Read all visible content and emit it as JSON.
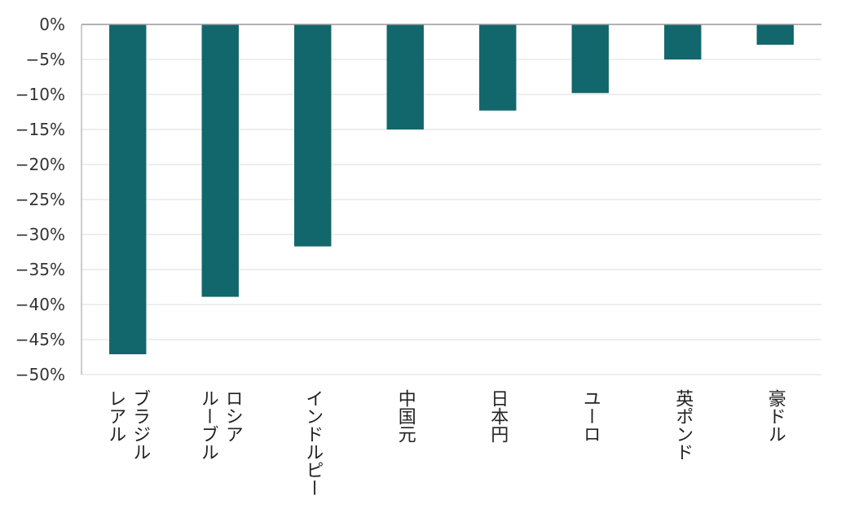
{
  "chart_data": {
    "type": "bar",
    "title": "",
    "xlabel": "",
    "ylabel": "",
    "categories": [
      [
        "ブラジル",
        "レアル"
      ],
      [
        "ロシア",
        "ルーブル"
      ],
      [
        "インドルピー"
      ],
      [
        "中国元"
      ],
      [
        "日本円"
      ],
      [
        "ユーロ"
      ],
      [
        "英ポンド"
      ],
      [
        "豪ドル"
      ]
    ],
    "values": [
      -47.1,
      -38.9,
      -31.7,
      -15.0,
      -12.3,
      -9.8,
      -5.0,
      -2.9
    ],
    "ylim": [
      -50,
      0
    ],
    "yticks": [
      0,
      -5,
      -10,
      -15,
      -20,
      -25,
      -30,
      -35,
      -40,
      -45,
      -50
    ],
    "ytick_labels": [
      "0%",
      "−5%",
      "−10%",
      "−15%",
      "−20%",
      "−25%",
      "−30%",
      "−35%",
      "−40%",
      "−45%",
      "−50%"
    ],
    "grid": true,
    "legend": "none",
    "bar_color": "#11676b",
    "grid_color": "#dddddd",
    "axis_color": "#999999"
  }
}
